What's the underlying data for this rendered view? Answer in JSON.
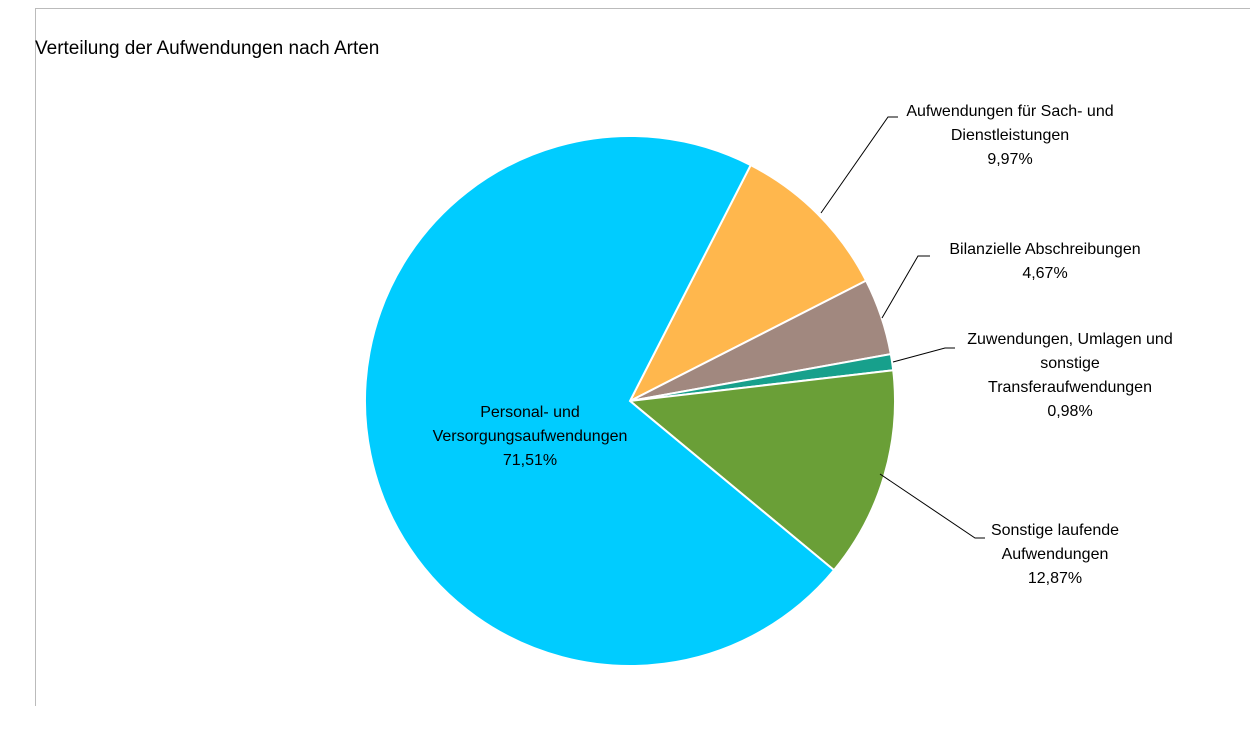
{
  "chart_data": {
    "type": "pie",
    "title": "Verteilung der Aufwendungen nach Arten",
    "categories": [
      "Aufwendungen für Sach- und Dienstleistungen",
      "Bilanzielle Abschreibungen",
      "Zuwendungen, Umlagen und sonstige Transferaufwendungen",
      "Sonstige laufende Aufwendungen",
      "Personal- und Versorgungsaufwendungen"
    ],
    "values": [
      9.97,
      4.67,
      0.98,
      12.87,
      71.51
    ],
    "value_labels": [
      "9,97%",
      "4,67%",
      "0,98%",
      "12,87%",
      "71,51%"
    ],
    "colors": [
      "#ffb74d",
      "#a1887f",
      "#17a08c",
      "#6a9f37",
      "#00ccff"
    ]
  }
}
